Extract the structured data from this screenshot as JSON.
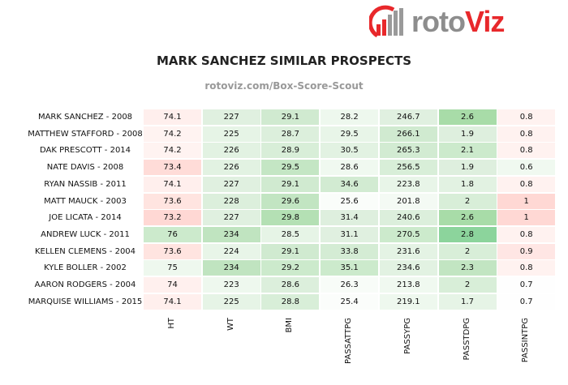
{
  "logo": {
    "text_main": "roto",
    "text_accent": "Viz",
    "colors": {
      "red": "#e8282b",
      "gray": "#8d8d8d"
    }
  },
  "chart_data": {
    "type": "table",
    "title": "MARK SANCHEZ SIMILAR PROSPECTS",
    "subtitle": "rotoviz.com/Box-Score-Scout",
    "columns": [
      "HT",
      "WT",
      "BMI",
      "PASSATTPG",
      "PASSYPG",
      "PASSTDPG",
      "PASSINTPG"
    ],
    "rows": [
      {
        "name": "MARK SANCHEZ - 2008",
        "values": [
          "74.1",
          "227",
          "29.1",
          "28.2",
          "246.7",
          "2.6",
          "0.8"
        ],
        "colors": [
          "#ffefed",
          "#e0f0e0",
          "#d0ead0",
          "#eef8ee",
          "#e0f0e0",
          "#a8dca8",
          "#fff2f0"
        ]
      },
      {
        "name": "MATTHEW STAFFORD - 2008",
        "values": [
          "74.2",
          "225",
          "28.7",
          "29.5",
          "266.1",
          "1.9",
          "0.8"
        ],
        "colors": [
          "#fff3f1",
          "#e6f4e6",
          "#dcefdc",
          "#e8f5e8",
          "#d0ead0",
          "#deefde",
          "#fff2f0"
        ]
      },
      {
        "name": "DAK PRESCOTT - 2014",
        "values": [
          "74.2",
          "226",
          "28.9",
          "30.5",
          "265.3",
          "2.1",
          "0.8"
        ],
        "colors": [
          "#fff3f1",
          "#e2f2e2",
          "#d8eed8",
          "#e2f2e2",
          "#d2ebd2",
          "#cceacc",
          "#fff2f0"
        ]
      },
      {
        "name": "NATE DAVIS - 2008",
        "values": [
          "73.4",
          "226",
          "29.5",
          "28.6",
          "256.5",
          "1.9",
          "0.6"
        ],
        "colors": [
          "#ffdcd8",
          "#e2f2e2",
          "#c4e6c4",
          "#f0f9f0",
          "#d8eed8",
          "#deefde",
          "#f0f9f0"
        ]
      },
      {
        "name": "RYAN NASSIB - 2011",
        "values": [
          "74.1",
          "227",
          "29.1",
          "34.6",
          "223.8",
          "1.8",
          "0.8"
        ],
        "colors": [
          "#ffefed",
          "#e0f0e0",
          "#d0ead0",
          "#d2ebd2",
          "#e8f5e8",
          "#e2f2e2",
          "#fff2f0"
        ]
      },
      {
        "name": "MATT MAUCK - 2003",
        "values": [
          "73.6",
          "228",
          "29.6",
          "25.6",
          "201.8",
          "2",
          "1"
        ],
        "colors": [
          "#ffe4e0",
          "#dcefdc",
          "#c2e5c2",
          "#fafdfa",
          "#f4faf4",
          "#d8eed8",
          "#ffd8d4"
        ]
      },
      {
        "name": "JOE LICATA - 2014",
        "values": [
          "73.2",
          "227",
          "29.8",
          "31.4",
          "240.6",
          "2.6",
          "1"
        ],
        "colors": [
          "#ffd8d4",
          "#e0f0e0",
          "#b4e0b4",
          "#deefde",
          "#dcefdc",
          "#a8dca8",
          "#ffd8d4"
        ]
      },
      {
        "name": "ANDREW LUCK - 2011",
        "values": [
          "76",
          "234",
          "28.5",
          "31.1",
          "270.5",
          "2.8",
          "0.8"
        ],
        "colors": [
          "#cceacc",
          "#c0e4c0",
          "#e6f4e6",
          "#e0f0e0",
          "#cceacc",
          "#8cd49c",
          "#fff2f0"
        ]
      },
      {
        "name": "KELLEN CLEMENS - 2004",
        "values": [
          "73.6",
          "224",
          "29.1",
          "33.8",
          "231.6",
          "2",
          "0.9"
        ],
        "colors": [
          "#ffe4e0",
          "#e8f5e8",
          "#d0ead0",
          "#d4ecd4",
          "#e4f3e4",
          "#d8eed8",
          "#ffe6e4"
        ]
      },
      {
        "name": "KYLE BOLLER - 2002",
        "values": [
          "75",
          "234",
          "29.2",
          "35.1",
          "234.6",
          "2.3",
          "0.8"
        ],
        "colors": [
          "#eef8ee",
          "#c0e4c0",
          "#cceacc",
          "#cceacc",
          "#e2f2e2",
          "#c2e5c2",
          "#fff2f0"
        ]
      },
      {
        "name": "AARON RODGERS - 2004",
        "values": [
          "74",
          "223",
          "28.6",
          "26.3",
          "213.8",
          "2",
          "0.7"
        ],
        "colors": [
          "#fff0ee",
          "#eef8ee",
          "#dcefdc",
          "#f8fcf8",
          "#f0f9f0",
          "#d8eed8",
          "#fefefe"
        ]
      },
      {
        "name": "MARQUISE WILLIAMS - 2015",
        "values": [
          "74.1",
          "225",
          "28.8",
          "25.4",
          "219.1",
          "1.7",
          "0.7"
        ],
        "colors": [
          "#ffefed",
          "#e6f4e6",
          "#d8eed8",
          "#fbfdfb",
          "#eef8ee",
          "#e6f4e6",
          "#fefefe"
        ]
      }
    ]
  }
}
